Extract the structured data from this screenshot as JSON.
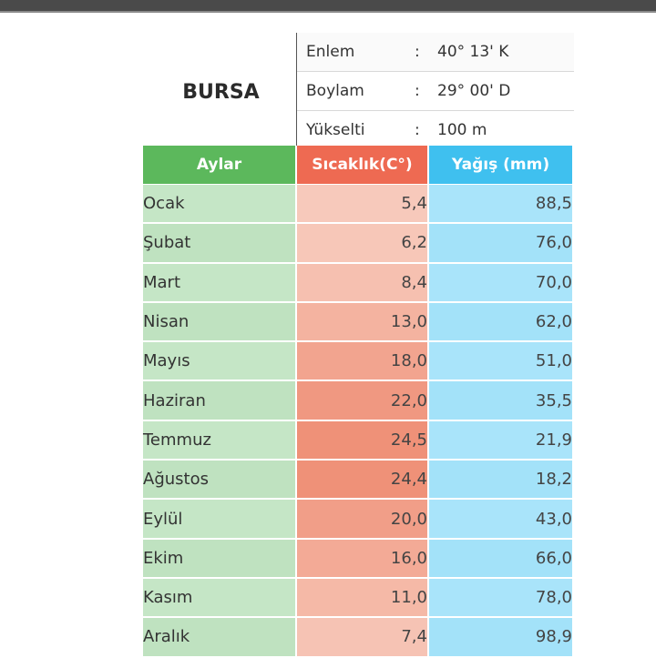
{
  "city": "BURSA",
  "info": [
    {
      "label": "Enlem",
      "colon": ":",
      "value": "40° 13' K"
    },
    {
      "label": "Boylam",
      "colon": ":",
      "value": "29° 00' D"
    },
    {
      "label": "Yükselti",
      "colon": ":",
      "value": "100 m"
    }
  ],
  "table": {
    "headers": {
      "month": "Aylar",
      "temp": "Sıcaklık(C°)",
      "rain": "Yağış (mm)"
    },
    "rows": [
      {
        "month": "Ocak",
        "temp": "5,4",
        "rain": "88,5"
      },
      {
        "month": "Şubat",
        "temp": "6,2",
        "rain": "76,0"
      },
      {
        "month": "Mart",
        "temp": "8,4",
        "rain": "70,0"
      },
      {
        "month": "Nisan",
        "temp": "13,0",
        "rain": "62,0"
      },
      {
        "month": "Mayıs",
        "temp": "18,0",
        "rain": "51,0"
      },
      {
        "month": "Haziran",
        "temp": "22,0",
        "rain": "35,5"
      },
      {
        "month": "Temmuz",
        "temp": "24,5",
        "rain": "21,9"
      },
      {
        "month": "Ağustos",
        "temp": "24,4",
        "rain": "18,2"
      },
      {
        "month": "Eylül",
        "temp": "20,0",
        "rain": "43,0"
      },
      {
        "month": "Ekim",
        "temp": "16,0",
        "rain": "66,0"
      },
      {
        "month": "Kasım",
        "temp": "11,0",
        "rain": "78,0"
      },
      {
        "month": "Aralık",
        "temp": "7,4",
        "rain": "98,9"
      }
    ]
  },
  "colors": {
    "header_month": "#5cb85c",
    "header_temp": "#ee6a52",
    "header_rain": "#3fc0ef",
    "temp_low": "#f7c9bb",
    "temp_high": "#ef9178"
  }
}
